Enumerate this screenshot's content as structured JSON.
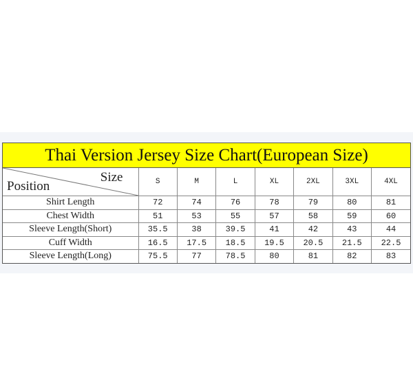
{
  "title": "Thai Version Jersey Size Chart(European Size)",
  "header": {
    "size_label": "Size",
    "position_label": "Position"
  },
  "sizes": [
    "S",
    "M",
    "L",
    "XL",
    "2XL",
    "3XL",
    "4XL"
  ],
  "rows": [
    {
      "label": "Shirt Length",
      "values": [
        "72",
        "74",
        "76",
        "78",
        "79",
        "80",
        "81"
      ]
    },
    {
      "label": "Chest Width",
      "values": [
        "51",
        "53",
        "55",
        "57",
        "58",
        "59",
        "60"
      ]
    },
    {
      "label": "Sleeve Length(Short)",
      "values": [
        "35.5",
        "38",
        "39.5",
        "41",
        "42",
        "43",
        "44"
      ]
    },
    {
      "label": "Cuff Width",
      "values": [
        "16.5",
        "17.5",
        "18.5",
        "19.5",
        "20.5",
        "21.5",
        "22.5"
      ]
    },
    {
      "label": "Sleeve Length(Long)",
      "values": [
        "75.5",
        "77",
        "78.5",
        "80",
        "81",
        "82",
        "83"
      ]
    }
  ],
  "colors": {
    "title_bg": "#ffff00",
    "border": "#555555"
  }
}
